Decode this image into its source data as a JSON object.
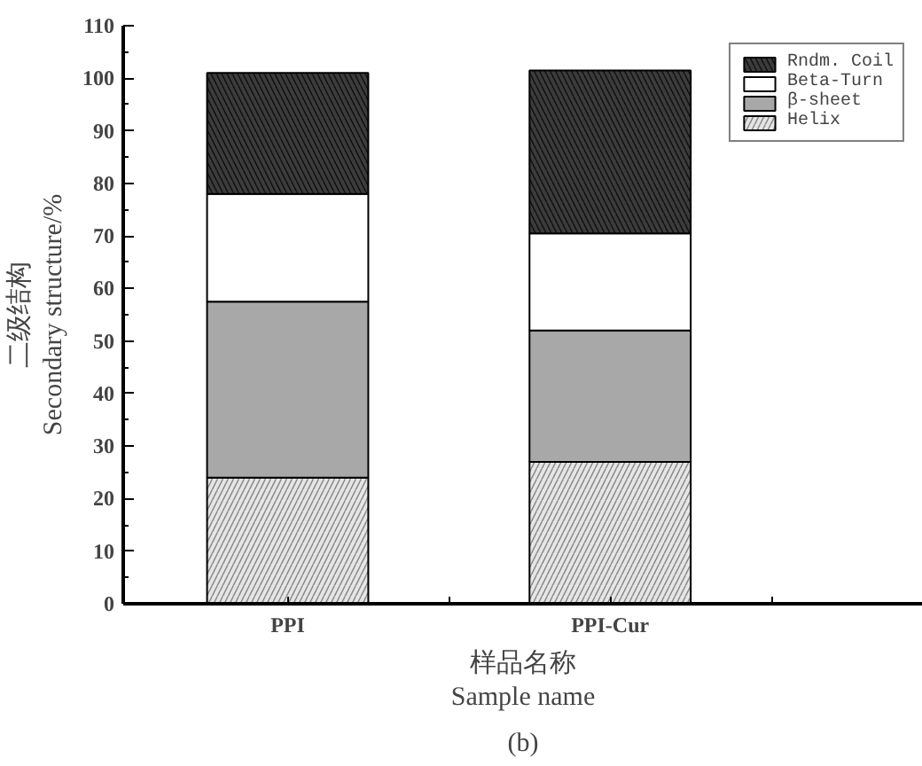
{
  "chart_data": {
    "type": "bar",
    "stacked": true,
    "categories": [
      "PPI",
      "PPI-Cur"
    ],
    "series": [
      {
        "name": "Helix",
        "color": "#e6e6e6",
        "values": [
          24,
          27
        ]
      },
      {
        "name": "β-sheet",
        "color": "#a8a8a8",
        "values": [
          33.5,
          25
        ]
      },
      {
        "name": "Beta-Turn",
        "color": "#ffffff",
        "values": [
          20.5,
          18.5
        ]
      },
      {
        "name": "Rndm. Coil",
        "color": "#3c3c3c",
        "values": [
          23,
          31
        ]
      }
    ],
    "ylabel": "二级结构\nSecondary structure/%",
    "xlabel": "样品名称\nSample name",
    "annotations": [
      "(b)"
    ],
    "ylim": [
      0,
      110
    ],
    "yticks": [
      0,
      10,
      20,
      30,
      40,
      50,
      60,
      70,
      80,
      90,
      100,
      110
    ],
    "legend": "top right",
    "grid": false
  }
}
